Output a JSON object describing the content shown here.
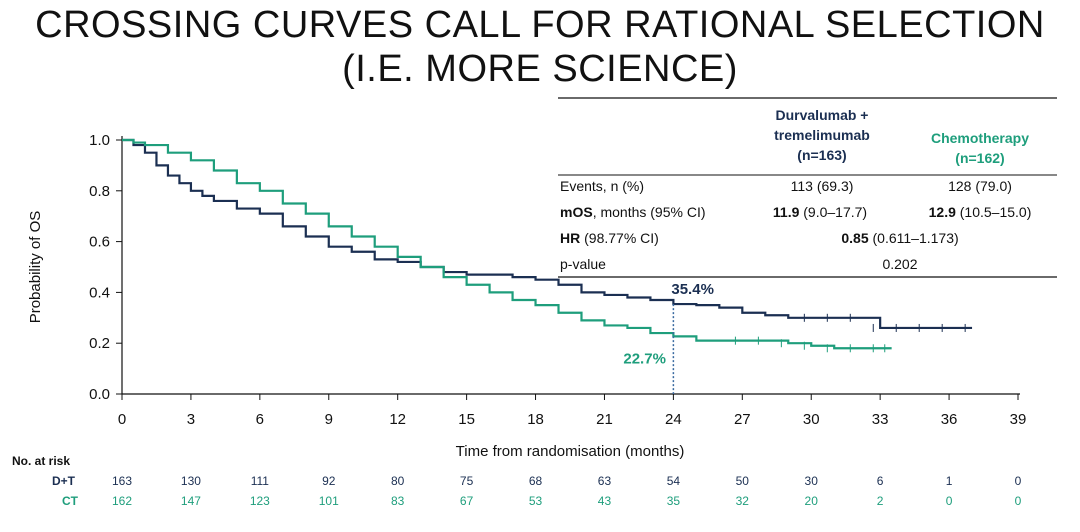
{
  "title": {
    "line1": "CROSSING CURVES CALL FOR RATIONAL SELECTION",
    "line2": "(I.E. MORE SCIENCE)"
  },
  "colors": {
    "dt": "#1b2f52",
    "ct": "#1e9e7c",
    "text": "#111111"
  },
  "table": {
    "dt_header": [
      "Durvalumab +",
      "tremelimumab",
      "(n=163)"
    ],
    "ct_header": [
      "Chemotherapy",
      "(n=162)"
    ],
    "rows": {
      "events": {
        "label": "Events, n (%)",
        "dt": "113 (69.3)",
        "ct": "128 (79.0)"
      },
      "mos": {
        "label_bold": "mOS",
        "label_rest": ", months (95% CI)",
        "dt_bold": "11.9",
        "dt_rest": " (9.0–17.7)",
        "ct_bold": "12.9",
        "ct_rest": " (10.5–15.0)"
      },
      "hr": {
        "label_bold": "HR",
        "label_rest": " (98.77% CI)",
        "val_bold": "0.85",
        "val_rest": " (0.611–1.173)"
      },
      "p": {
        "label": "p-value",
        "val": "0.202"
      }
    }
  },
  "risk_table": {
    "title": "No. at risk",
    "dt_label": "D+T",
    "ct_label": "CT",
    "dt": [
      "163",
      "130",
      "111",
      "92",
      "80",
      "75",
      "68",
      "63",
      "54",
      "50",
      "30",
      "6",
      "1",
      "0"
    ],
    "ct": [
      "162",
      "147",
      "123",
      "101",
      "83",
      "67",
      "53",
      "43",
      "35",
      "32",
      "20",
      "2",
      "0",
      "0"
    ]
  },
  "chart_data": {
    "type": "line",
    "xlabel": "Time from randomisation (months)",
    "ylabel": "Probability of OS",
    "xlim": [
      0,
      39
    ],
    "ylim": [
      0,
      1
    ],
    "xticks": [
      0,
      3,
      6,
      9,
      12,
      15,
      18,
      21,
      24,
      27,
      30,
      33,
      36,
      39
    ],
    "yticks": [
      0.0,
      0.2,
      0.4,
      0.6,
      0.8,
      1.0
    ],
    "ytick_labels": [
      "0.0",
      "0.2",
      "0.4",
      "0.6",
      "0.8",
      "1.0"
    ],
    "annotation": {
      "x": 24,
      "dt_value": 0.354,
      "ct_value": 0.227,
      "dt_label": "35.4%",
      "ct_label": "22.7%"
    },
    "series": [
      {
        "name": "D+T",
        "color": "#1b2f52",
        "x": [
          0,
          0.5,
          1,
          1.5,
          2,
          2.5,
          3,
          3.5,
          4,
          5,
          6,
          7,
          8,
          9,
          10,
          11,
          12,
          13,
          14,
          15,
          16,
          17,
          18,
          19,
          20,
          21,
          22,
          23,
          24,
          25,
          26,
          27,
          28,
          29,
          30,
          31,
          32,
          33,
          34,
          35,
          36,
          37
        ],
        "y": [
          1.0,
          0.98,
          0.95,
          0.9,
          0.86,
          0.83,
          0.8,
          0.78,
          0.76,
          0.73,
          0.71,
          0.66,
          0.62,
          0.58,
          0.56,
          0.53,
          0.52,
          0.5,
          0.48,
          0.47,
          0.47,
          0.46,
          0.45,
          0.43,
          0.4,
          0.39,
          0.38,
          0.37,
          0.354,
          0.35,
          0.34,
          0.32,
          0.31,
          0.3,
          0.3,
          0.3,
          0.3,
          0.26,
          0.26,
          0.26,
          0.26,
          0.26
        ]
      },
      {
        "name": "CT",
        "color": "#1e9e7c",
        "x": [
          0,
          0.5,
          1,
          2,
          3,
          4,
          5,
          6,
          7,
          8,
          9,
          10,
          11,
          12,
          13,
          14,
          15,
          16,
          17,
          18,
          19,
          20,
          21,
          22,
          23,
          24,
          25,
          26,
          27,
          28,
          29,
          30,
          31,
          32,
          33,
          33.5
        ],
        "y": [
          1.0,
          0.99,
          0.98,
          0.95,
          0.92,
          0.88,
          0.83,
          0.8,
          0.75,
          0.71,
          0.66,
          0.62,
          0.58,
          0.54,
          0.5,
          0.46,
          0.43,
          0.4,
          0.37,
          0.35,
          0.32,
          0.29,
          0.27,
          0.26,
          0.24,
          0.227,
          0.21,
          0.21,
          0.21,
          0.21,
          0.2,
          0.19,
          0.18,
          0.18,
          0.18,
          0.18
        ]
      }
    ]
  }
}
